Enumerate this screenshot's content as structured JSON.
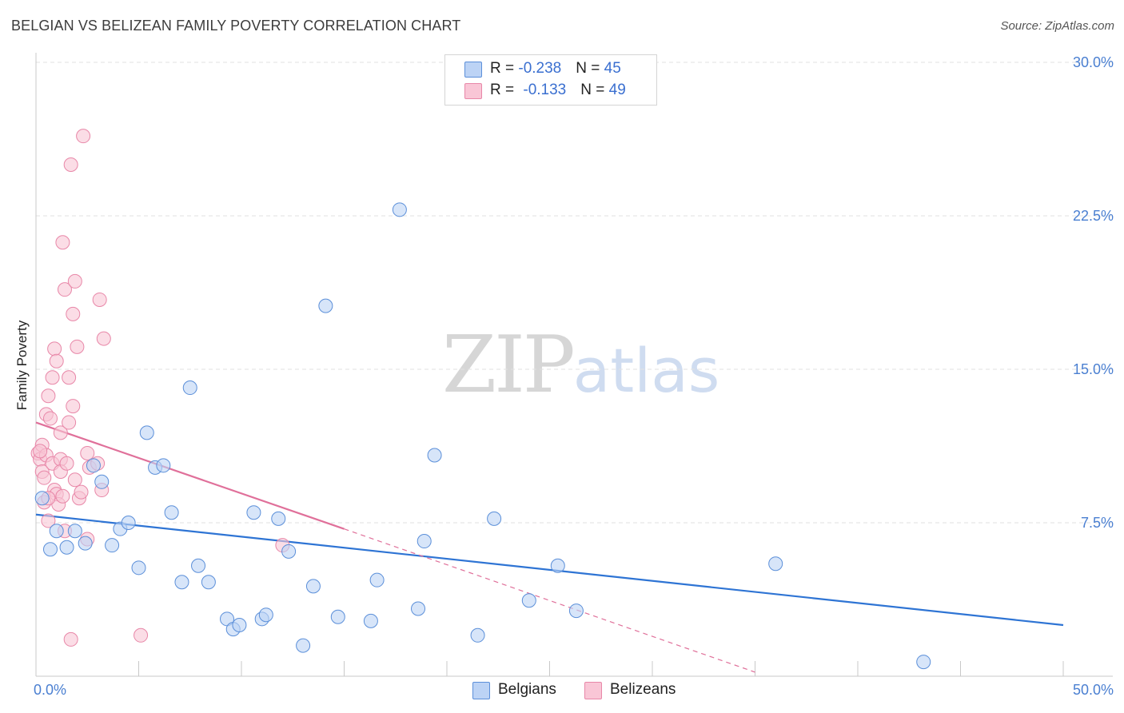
{
  "title": "BELGIAN VS BELIZEAN FAMILY POVERTY CORRELATION CHART",
  "source": "Source: ZipAtlas.com",
  "watermark": {
    "zip": "ZIP",
    "atlas": "atlas"
  },
  "legend": {
    "rows": [
      {
        "r_label": "R = ",
        "r_value": "-0.238",
        "n_label": "N = ",
        "n_value": "45",
        "color": "#5b8fd9",
        "fill": "#bcd3f5"
      },
      {
        "r_label": "R = ",
        "r_value": "-0.133",
        "n_label": "N = ",
        "n_value": "49",
        "color": "#e887a8",
        "fill": "#f9c6d6"
      }
    ]
  },
  "bottom_legend": {
    "belgians": "Belgians",
    "belizeans": "Belizeans"
  },
  "colors": {
    "belgian_fill": "#bcd3f5",
    "belgian_stroke": "#5b8fd9",
    "belgian_line": "#2e74d4",
    "belizean_fill": "#f9c6d6",
    "belizean_stroke": "#e887a8",
    "belizean_line": "#e0709a",
    "tick_text": "#4a7fd1"
  },
  "chart_data": {
    "type": "scatter",
    "title": "BELGIAN VS BELIZEAN FAMILY POVERTY CORRELATION CHART",
    "xlabel": "",
    "ylabel": "Family Poverty",
    "xlim": [
      0,
      50
    ],
    "ylim": [
      0,
      30
    ],
    "x_tick_labels": [
      {
        "value": 0,
        "label": "0.0%"
      },
      {
        "value": 50,
        "label": "50.0%"
      }
    ],
    "y_tick_labels": [
      {
        "value": 7.5,
        "label": "7.5%"
      },
      {
        "value": 15,
        "label": "15.0%"
      },
      {
        "value": 22.5,
        "label": "22.5%"
      },
      {
        "value": 30,
        "label": "30.0%"
      }
    ],
    "x_minor_ticks": [
      0,
      5,
      10,
      15,
      20,
      25,
      30,
      35,
      40,
      45,
      50
    ],
    "series": [
      {
        "name": "Belgians",
        "r": -0.238,
        "n": 45,
        "points": [
          [
            0.3,
            8.7
          ],
          [
            0.7,
            6.2
          ],
          [
            1.0,
            7.1
          ],
          [
            1.5,
            6.3
          ],
          [
            1.9,
            7.1
          ],
          [
            2.4,
            6.5
          ],
          [
            2.8,
            10.3
          ],
          [
            3.2,
            9.5
          ],
          [
            3.7,
            6.4
          ],
          [
            4.1,
            7.2
          ],
          [
            4.5,
            7.5
          ],
          [
            5.0,
            5.3
          ],
          [
            5.4,
            11.9
          ],
          [
            5.8,
            10.2
          ],
          [
            6.2,
            10.3
          ],
          [
            6.6,
            8.0
          ],
          [
            7.1,
            4.6
          ],
          [
            7.5,
            14.1
          ],
          [
            7.9,
            5.4
          ],
          [
            8.4,
            4.6
          ],
          [
            9.3,
            2.8
          ],
          [
            9.6,
            2.3
          ],
          [
            9.9,
            2.5
          ],
          [
            10.6,
            8.0
          ],
          [
            11.0,
            2.8
          ],
          [
            11.2,
            3.0
          ],
          [
            11.8,
            7.7
          ],
          [
            12.3,
            6.1
          ],
          [
            13.0,
            1.5
          ],
          [
            13.5,
            4.4
          ],
          [
            14.1,
            18.1
          ],
          [
            14.7,
            2.9
          ],
          [
            16.3,
            2.7
          ],
          [
            16.6,
            4.7
          ],
          [
            17.7,
            22.8
          ],
          [
            18.6,
            3.3
          ],
          [
            18.9,
            6.6
          ],
          [
            19.4,
            10.8
          ],
          [
            21.5,
            2.0
          ],
          [
            22.3,
            7.7
          ],
          [
            24.0,
            3.7
          ],
          [
            25.4,
            5.4
          ],
          [
            26.3,
            3.2
          ],
          [
            36.0,
            5.5
          ],
          [
            43.2,
            0.7
          ]
        ]
      },
      {
        "name": "Belizeans",
        "r": -0.133,
        "n": 49,
        "points": [
          [
            0.1,
            10.9
          ],
          [
            0.2,
            10.6
          ],
          [
            0.3,
            11.3
          ],
          [
            0.3,
            10.0
          ],
          [
            0.4,
            8.5
          ],
          [
            0.4,
            9.7
          ],
          [
            0.5,
            12.8
          ],
          [
            0.5,
            10.8
          ],
          [
            0.6,
            13.7
          ],
          [
            0.6,
            7.6
          ],
          [
            0.7,
            12.6
          ],
          [
            0.8,
            14.6
          ],
          [
            0.8,
            10.4
          ],
          [
            0.9,
            16.0
          ],
          [
            0.9,
            9.1
          ],
          [
            1.0,
            15.4
          ],
          [
            1.0,
            8.9
          ],
          [
            1.1,
            8.4
          ],
          [
            1.2,
            11.9
          ],
          [
            1.2,
            10.6
          ],
          [
            1.2,
            10.0
          ],
          [
            1.3,
            8.8
          ],
          [
            1.3,
            21.2
          ],
          [
            1.4,
            7.1
          ],
          [
            1.4,
            18.9
          ],
          [
            1.5,
            10.4
          ],
          [
            1.6,
            14.6
          ],
          [
            1.6,
            12.4
          ],
          [
            1.7,
            1.8
          ],
          [
            1.7,
            25.0
          ],
          [
            1.8,
            13.2
          ],
          [
            1.8,
            17.7
          ],
          [
            1.9,
            9.6
          ],
          [
            1.9,
            19.3
          ],
          [
            2.0,
            16.1
          ],
          [
            2.1,
            8.7
          ],
          [
            2.2,
            9.0
          ],
          [
            2.3,
            26.4
          ],
          [
            2.5,
            6.7
          ],
          [
            2.5,
            10.9
          ],
          [
            2.6,
            10.2
          ],
          [
            3.0,
            10.4
          ],
          [
            3.1,
            18.4
          ],
          [
            3.2,
            9.1
          ],
          [
            3.3,
            16.5
          ],
          [
            5.1,
            2.0
          ],
          [
            12.0,
            6.4
          ],
          [
            0.2,
            11.0
          ],
          [
            0.6,
            8.7
          ]
        ]
      }
    ],
    "trend_lines": [
      {
        "series": "Belgians",
        "x0": 0,
        "y0": 7.9,
        "x1": 50,
        "y1": 2.5,
        "style": "solid"
      },
      {
        "series": "Belizeans",
        "x0": 0,
        "y0": 12.4,
        "x1": 15,
        "y1": 7.2,
        "style": "solid"
      },
      {
        "series": "Belizeans",
        "x0": 15,
        "y0": 7.2,
        "x1": 35,
        "y1": 0.2,
        "style": "dashed"
      }
    ]
  }
}
